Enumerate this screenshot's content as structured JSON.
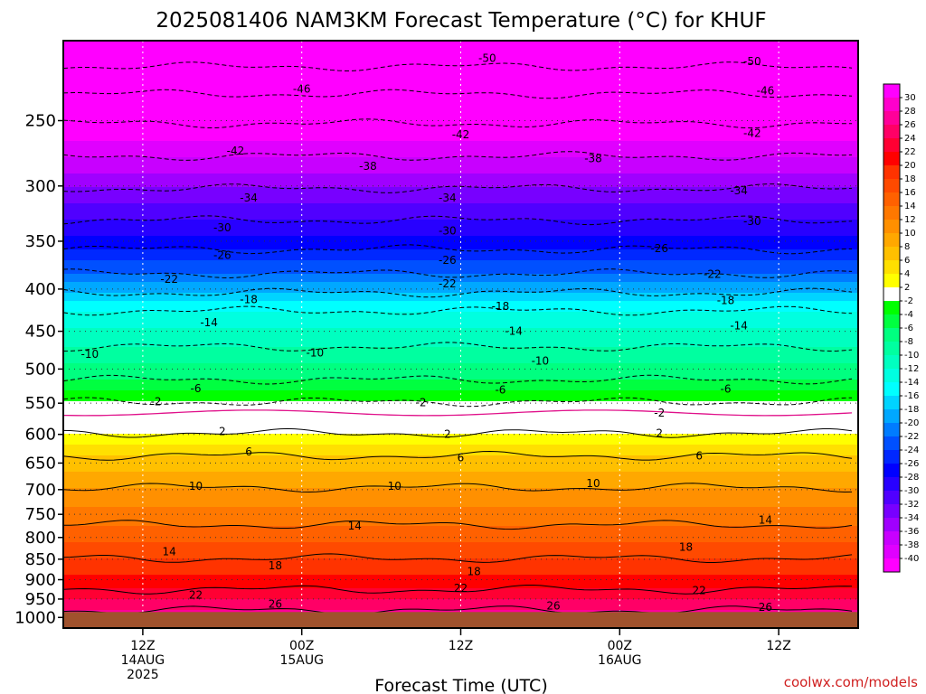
{
  "title": "2025081406 NAM3KM Forecast Temperature (°C) for KHUF",
  "xlabel": "Forecast Time (UTC)",
  "credit": "coolwx.com/models",
  "colors": {
    "credit": "#d02020",
    "ground": "#a0522d",
    "freezing_line": "#e0108a"
  },
  "chart_data": {
    "type": "heatmap",
    "title": "2025081406 NAM3KM Forecast Temperature (°C) for KHUF",
    "xlabel": "Forecast Time (UTC)",
    "ylabel": "",
    "x_range_hours": [
      6,
      66
    ],
    "x_ticks": [
      {
        "hour": 12,
        "lines": [
          "12Z",
          "14AUG",
          "2025"
        ]
      },
      {
        "hour": 24,
        "lines": [
          "00Z",
          "15AUG"
        ]
      },
      {
        "hour": 36,
        "lines": [
          "12Z"
        ]
      },
      {
        "hour": 48,
        "lines": [
          "00Z",
          "16AUG"
        ]
      },
      {
        "hour": 60,
        "lines": [
          "12Z"
        ]
      }
    ],
    "y_scale": "log-pressure",
    "y_range_hpa": [
      1030,
      200
    ],
    "y_ticks": [
      250,
      300,
      350,
      400,
      450,
      500,
      550,
      600,
      650,
      700,
      750,
      800,
      850,
      900,
      950,
      1000
    ],
    "ground_level_hpa": 985,
    "freezing_level_hpa": 565,
    "contour_profile": {
      "levels_c": [
        -50,
        -46,
        -42,
        -38,
        -34,
        -30,
        -26,
        -22,
        -18,
        -14,
        -10,
        -6,
        -2,
        2,
        6,
        10,
        14,
        18,
        22,
        26
      ],
      "pressure_hpa": [
        215,
        232,
        252,
        276,
        302,
        330,
        358,
        383,
        404,
        425,
        470,
        515,
        548,
        598,
        637,
        696,
        772,
        848,
        925,
        980
      ]
    },
    "contour_labels": [
      {
        "v": "-50",
        "x": 38,
        "p": 210
      },
      {
        "v": "-50",
        "x": 58,
        "p": 212
      },
      {
        "v": "-46",
        "x": 24,
        "p": 229
      },
      {
        "v": "-46",
        "x": 59,
        "p": 230
      },
      {
        "v": "-42",
        "x": 19,
        "p": 272
      },
      {
        "v": "-42",
        "x": 36,
        "p": 260
      },
      {
        "v": "-42",
        "x": 58,
        "p": 259
      },
      {
        "v": "-38",
        "x": 29,
        "p": 284
      },
      {
        "v": "-38",
        "x": 46,
        "p": 278
      },
      {
        "v": "-34",
        "x": 20,
        "p": 310
      },
      {
        "v": "-34",
        "x": 35,
        "p": 310
      },
      {
        "v": "-34",
        "x": 57,
        "p": 304
      },
      {
        "v": "-30",
        "x": 18,
        "p": 337
      },
      {
        "v": "-30",
        "x": 35,
        "p": 340
      },
      {
        "v": "-30",
        "x": 58,
        "p": 331
      },
      {
        "v": "-26",
        "x": 18,
        "p": 364
      },
      {
        "v": "-26",
        "x": 35,
        "p": 369
      },
      {
        "v": "-26",
        "x": 51,
        "p": 357
      },
      {
        "v": "-22",
        "x": 14,
        "p": 389
      },
      {
        "v": "-22",
        "x": 35,
        "p": 394
      },
      {
        "v": "-22",
        "x": 55,
        "p": 384
      },
      {
        "v": "-18",
        "x": 20,
        "p": 412
      },
      {
        "v": "-18",
        "x": 39,
        "p": 420
      },
      {
        "v": "-18",
        "x": 56,
        "p": 413
      },
      {
        "v": "-14",
        "x": 17,
        "p": 439
      },
      {
        "v": "-14",
        "x": 40,
        "p": 450
      },
      {
        "v": "-14",
        "x": 57,
        "p": 443
      },
      {
        "v": "-10",
        "x": 8,
        "p": 480
      },
      {
        "v": "-10",
        "x": 25,
        "p": 478
      },
      {
        "v": "-10",
        "x": 42,
        "p": 489
      },
      {
        "v": "-6",
        "x": 16,
        "p": 528
      },
      {
        "v": "-6",
        "x": 39,
        "p": 530
      },
      {
        "v": "-6",
        "x": 56,
        "p": 529
      },
      {
        "v": "-2",
        "x": 13,
        "p": 548
      },
      {
        "v": "-2",
        "x": 33,
        "p": 549
      },
      {
        "v": "-2",
        "x": 51,
        "p": 565
      },
      {
        "v": "2",
        "x": 18,
        "p": 595
      },
      {
        "v": "2",
        "x": 35,
        "p": 600
      },
      {
        "v": "2",
        "x": 51,
        "p": 598
      },
      {
        "v": "6",
        "x": 20,
        "p": 630
      },
      {
        "v": "6",
        "x": 36,
        "p": 640
      },
      {
        "v": "6",
        "x": 54,
        "p": 637
      },
      {
        "v": "10",
        "x": 16,
        "p": 693
      },
      {
        "v": "10",
        "x": 31,
        "p": 693
      },
      {
        "v": "10",
        "x": 46,
        "p": 688
      },
      {
        "v": "14",
        "x": 28,
        "p": 775
      },
      {
        "v": "14",
        "x": 14,
        "p": 832
      },
      {
        "v": "14",
        "x": 59,
        "p": 762
      },
      {
        "v": "18",
        "x": 22,
        "p": 866
      },
      {
        "v": "18",
        "x": 37,
        "p": 880
      },
      {
        "v": "18",
        "x": 53,
        "p": 822
      },
      {
        "v": "22",
        "x": 16,
        "p": 940
      },
      {
        "v": "22",
        "x": 36,
        "p": 922
      },
      {
        "v": "22",
        "x": 54,
        "p": 928
      },
      {
        "v": "26",
        "x": 22,
        "p": 963
      },
      {
        "v": "26",
        "x": 43,
        "p": 968
      },
      {
        "v": "26",
        "x": 59,
        "p": 972
      }
    ],
    "colorbar": {
      "levels": [
        30,
        28,
        26,
        24,
        22,
        20,
        18,
        16,
        14,
        12,
        10,
        8,
        6,
        4,
        2,
        -2,
        -4,
        -6,
        -8,
        -10,
        -12,
        -14,
        -16,
        -18,
        -20,
        -22,
        -24,
        -26,
        -28,
        -30,
        -32,
        -34,
        -36,
        -38,
        -40
      ],
      "colors": [
        "#ff00ff",
        "#ff00cc",
        "#ff0099",
        "#ff0066",
        "#ff0033",
        "#ff0000",
        "#ff3300",
        "#ff4a00",
        "#ff6100",
        "#ff7800",
        "#ff9000",
        "#ffa800",
        "#ffc000",
        "#ffe000",
        "#ffff00",
        "#ffffff",
        "#00ff00",
        "#00ff40",
        "#00ff80",
        "#00ffa0",
        "#00ffc0",
        "#00ffe0",
        "#00ffff",
        "#00d4ff",
        "#00a8ff",
        "#007cff",
        "#0050ff",
        "#0028ff",
        "#0000ff",
        "#2800ff",
        "#5000ff",
        "#7800ff",
        "#a000ff",
        "#c800ff",
        "#e000ff",
        "#ff00ff"
      ],
      "band_min_c": [
        -40,
        -38,
        -36,
        -34,
        -32,
        -30,
        -28,
        -26,
        -24,
        -22,
        -20,
        -18,
        -16,
        -14,
        -12,
        -10,
        -8,
        -6,
        -4,
        -2,
        2,
        4,
        6,
        8,
        10,
        12,
        14,
        16,
        18,
        20,
        22,
        24,
        26,
        28,
        30
      ]
    }
  }
}
